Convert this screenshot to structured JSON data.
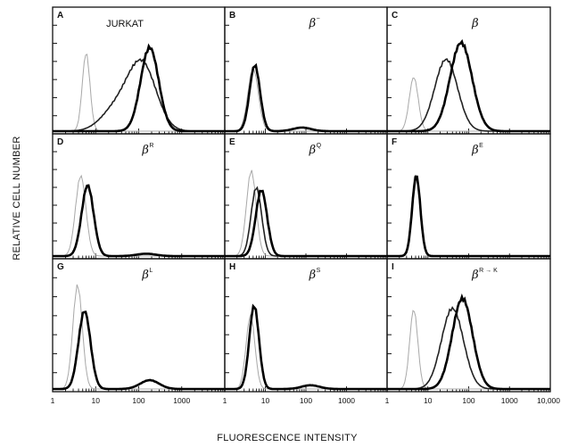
{
  "chart_data": {
    "type": "histogram-grid",
    "xlabel": "FLUORESCENCE INTENSITY",
    "ylabel": "RELATIVE CELL NUMBER",
    "x_scale": "log",
    "xlim": [
      1,
      10000
    ],
    "x_tick_labels": [
      "1",
      "10",
      "100",
      "1000"
    ],
    "x_tick_labels_last_panel": [
      "1",
      "10",
      "100",
      "1000",
      "10,000"
    ],
    "panels": [
      {
        "letter": "A",
        "label": "JURKAT",
        "label_style": "plain",
        "series": [
          {
            "peak_x": 6,
            "sigma": 0.09,
            "height": 0.65,
            "style": "faint"
          },
          {
            "peak_x": 120,
            "sigma": 0.33,
            "height": 0.55,
            "style": "mid",
            "shoulder": 0.18
          },
          {
            "peak_x": 180,
            "sigma": 0.21,
            "height": 0.7,
            "style": "bold"
          }
        ]
      },
      {
        "letter": "B",
        "label": "β",
        "label_sup": "−",
        "label_style": "greek",
        "series": [
          {
            "peak_x": 5,
            "sigma": 0.13,
            "height": 0.52,
            "style": "faint"
          },
          {
            "peak_x": 5.5,
            "sigma": 0.13,
            "height": 0.55,
            "style": "bold",
            "tail_x": 80,
            "tail_h": 0.03
          }
        ]
      },
      {
        "letter": "C",
        "label": "β",
        "label_sup": "",
        "label_style": "greek",
        "series": [
          {
            "peak_x": 4.5,
            "sigma": 0.11,
            "height": 0.45,
            "style": "faint"
          },
          {
            "peak_x": 28,
            "sigma": 0.28,
            "height": 0.6,
            "style": "mid"
          },
          {
            "peak_x": 65,
            "sigma": 0.27,
            "height": 0.74,
            "style": "bold"
          }
        ]
      },
      {
        "letter": "D",
        "label": "β",
        "label_sup": "R",
        "label_style": "greek",
        "series": [
          {
            "peak_x": 4.5,
            "sigma": 0.12,
            "height": 0.68,
            "style": "faint"
          },
          {
            "peak_x": 6.5,
            "sigma": 0.14,
            "height": 0.6,
            "style": "bold",
            "tail_x": 150,
            "tail_h": 0.02
          }
        ]
      },
      {
        "letter": "E",
        "label": "β",
        "label_sup": "Q",
        "label_style": "greek",
        "series": [
          {
            "peak_x": 4.5,
            "sigma": 0.12,
            "height": 0.72,
            "style": "faint"
          },
          {
            "peak_x": 6,
            "sigma": 0.13,
            "height": 0.58,
            "style": "mid"
          },
          {
            "peak_x": 8,
            "sigma": 0.14,
            "height": 0.56,
            "style": "bold"
          }
        ]
      },
      {
        "letter": "F",
        "label": "β",
        "label_sup": "E",
        "label_style": "greek",
        "series": [
          {
            "peak_x": 5,
            "sigma": 0.1,
            "height": 0.7,
            "style": "faint"
          },
          {
            "peak_x": 5.2,
            "sigma": 0.1,
            "height": 0.68,
            "style": "bold"
          }
        ]
      },
      {
        "letter": "G",
        "label": "β",
        "label_sup": "L",
        "label_style": "greek",
        "series": [
          {
            "peak_x": 3.8,
            "sigma": 0.11,
            "height": 0.82,
            "style": "faint"
          },
          {
            "peak_x": 5.5,
            "sigma": 0.14,
            "height": 0.62,
            "style": "bold",
            "tail_x": 180,
            "tail_h": 0.07
          }
        ]
      },
      {
        "letter": "H",
        "label": "β",
        "label_sup": "S",
        "label_style": "greek",
        "series": [
          {
            "peak_x": 4.3,
            "sigma": 0.11,
            "height": 0.58,
            "style": "faint"
          },
          {
            "peak_x": 5.3,
            "sigma": 0.12,
            "height": 0.66,
            "style": "bold",
            "tail_x": 130,
            "tail_h": 0.03
          }
        ]
      },
      {
        "letter": "I",
        "label": "β",
        "label_sup": "R → K",
        "label_style": "greek",
        "series": [
          {
            "peak_x": 4.5,
            "sigma": 0.1,
            "height": 0.63,
            "style": "faint"
          },
          {
            "peak_x": 40,
            "sigma": 0.27,
            "height": 0.64,
            "style": "mid"
          },
          {
            "peak_x": 70,
            "sigma": 0.25,
            "height": 0.72,
            "style": "bold"
          }
        ]
      }
    ]
  }
}
